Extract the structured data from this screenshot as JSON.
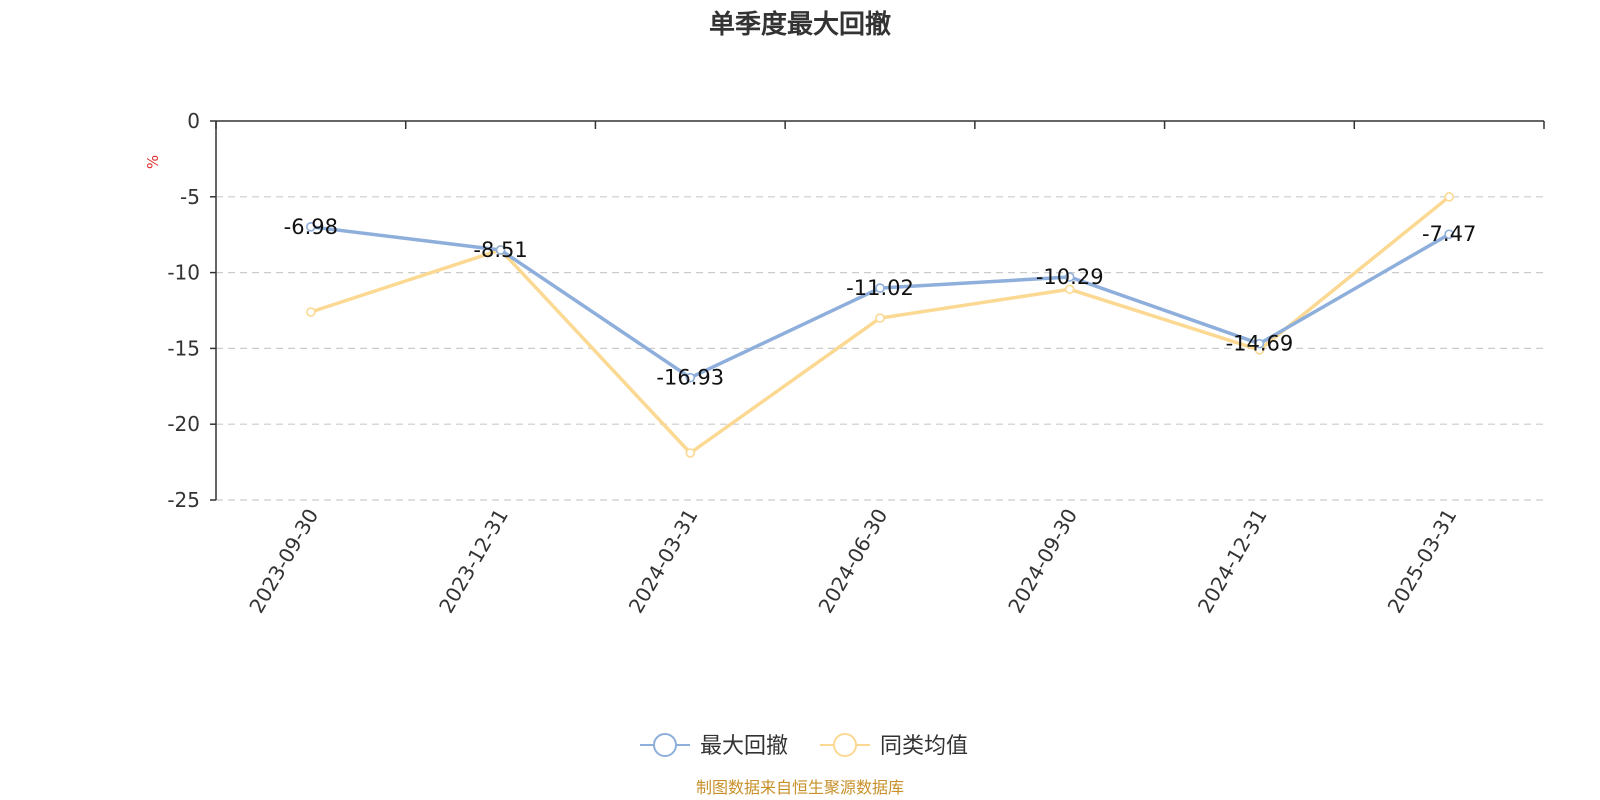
{
  "chart_data": {
    "type": "line",
    "title": "单季度最大回撤",
    "ylabel": "%",
    "ylim": [
      -25,
      0
    ],
    "yticks": [
      0,
      -5,
      -10,
      -15,
      -20,
      -25
    ],
    "grid": true,
    "categories": [
      "2023-09-30",
      "2023-12-31",
      "2024-03-31",
      "2024-06-30",
      "2024-09-30",
      "2024-12-31",
      "2025-03-31"
    ],
    "series": [
      {
        "name": "最大回撤",
        "color": "#8eaedb",
        "values": [
          -6.98,
          -8.51,
          -16.93,
          -11.02,
          -10.29,
          -14.69,
          -7.47
        ],
        "labels": [
          "-6.98",
          "-8.51",
          "-16.93",
          "-11.02",
          "-10.29",
          "-14.69",
          "-7.47"
        ]
      },
      {
        "name": "同类均值",
        "color": "#fbd993",
        "values": [
          -12.6,
          -8.5,
          -21.9,
          -13.0,
          -11.1,
          -15.1,
          -5.0
        ]
      }
    ],
    "legend_position": "bottom-center",
    "source": "制图数据来自恒生聚源数据库",
    "colors": {
      "axis": "#333333",
      "grid": "#cccccc",
      "unit": "#e03030",
      "source": "#c8902a"
    }
  }
}
